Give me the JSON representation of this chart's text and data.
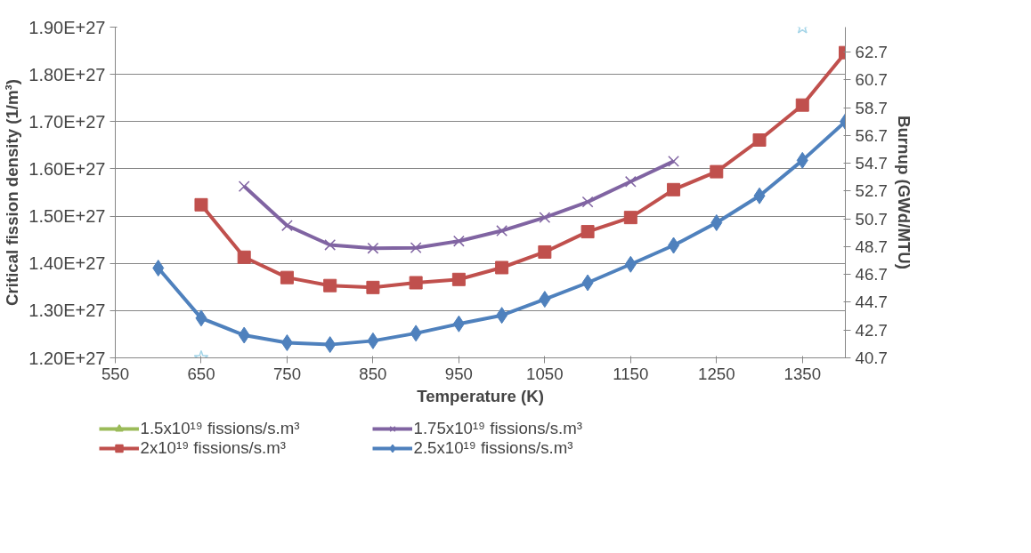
{
  "chart_data": {
    "type": "line",
    "xlabel": "Temperature (K)",
    "ylabel": "Critical fission density (1/m³)",
    "y2label": "Burnup (GWd/MTU)",
    "x": [
      600,
      650,
      700,
      750,
      800,
      850,
      900,
      950,
      1000,
      1050,
      1100,
      1150,
      1200,
      1250,
      1300,
      1350,
      1400
    ],
    "series": [
      {
        "name": "1.5x10¹⁹ fissions/s.m³",
        "color": "#9bbb59",
        "marker": "triangle",
        "values": [
          null,
          null,
          null,
          null,
          null,
          null,
          null,
          null,
          null,
          null,
          null,
          null,
          null,
          null,
          null,
          null,
          null
        ]
      },
      {
        "name": "1.75x10¹⁹ fissions/s.m³",
        "color": "#8064a2",
        "marker": "cross",
        "values": [
          null,
          null,
          1.563e+27,
          1.48e+27,
          1.439e+27,
          1.432e+27,
          1.433e+27,
          1.447e+27,
          1.469e+27,
          1.497e+27,
          1.53e+27,
          1.573e+27,
          1.616e+27,
          null,
          null,
          null,
          null
        ]
      },
      {
        "name": "2x10¹⁹ fissions/s.m³",
        "color": "#c0504d",
        "marker": "square",
        "values": [
          null,
          1.524e+27,
          1.413e+27,
          1.37e+27,
          1.353e+27,
          1.349e+27,
          1.359e+27,
          1.366e+27,
          1.391e+27,
          1.424e+27,
          1.467e+27,
          1.497e+27,
          1.556e+27,
          1.594e+27,
          1.661e+27,
          1.735e+27,
          1.846e+27
        ]
      },
      {
        "name": "2.5x10¹⁹ fissions/s.m³",
        "color": "#4f81bd",
        "marker": "diamond",
        "values": [
          1.39e+27,
          1.284e+27,
          1.248e+27,
          1.232e+27,
          1.228e+27,
          1.236e+27,
          1.252e+27,
          1.272e+27,
          1.29e+27,
          1.324e+27,
          1.359e+27,
          1.398e+27,
          1.438e+27,
          1.486e+27,
          1.543e+27,
          1.618e+27,
          1.7e+27
        ]
      },
      {
        "type": "scatter",
        "color": "#a5d5e8",
        "marker": "star",
        "x": [
          650,
          1350
        ],
        "values": [
          1.2e+27,
          1.9e+27
        ]
      }
    ],
    "xlim": [
      550,
      1400
    ],
    "xticks": [
      550,
      650,
      750,
      850,
      950,
      1050,
      1150,
      1250,
      1350
    ],
    "ylim": [
      1.2e+27,
      1.9e+27
    ],
    "yticks": [
      {
        "value": 1.2e+27,
        "label": "1.20E+27"
      },
      {
        "value": 1.3e+27,
        "label": "1.30E+27"
      },
      {
        "value": 1.4e+27,
        "label": "1.40E+27"
      },
      {
        "value": 1.5e+27,
        "label": "1.50E+27"
      },
      {
        "value": 1.6e+27,
        "label": "1.60E+27"
      },
      {
        "value": 1.7e+27,
        "label": "1.70E+27"
      },
      {
        "value": 1.8e+27,
        "label": "1.80E+27"
      },
      {
        "value": 1.9e+27,
        "label": "1.90E+27"
      }
    ],
    "y2lim": [
      40.7,
      64.5
    ],
    "y2ticks": [
      40.7,
      42.7,
      44.7,
      46.7,
      48.7,
      50.7,
      52.7,
      54.7,
      56.7,
      58.7,
      60.7,
      62.7
    ],
    "grid": "y",
    "legend": "bottom",
    "line_style": "solid"
  }
}
